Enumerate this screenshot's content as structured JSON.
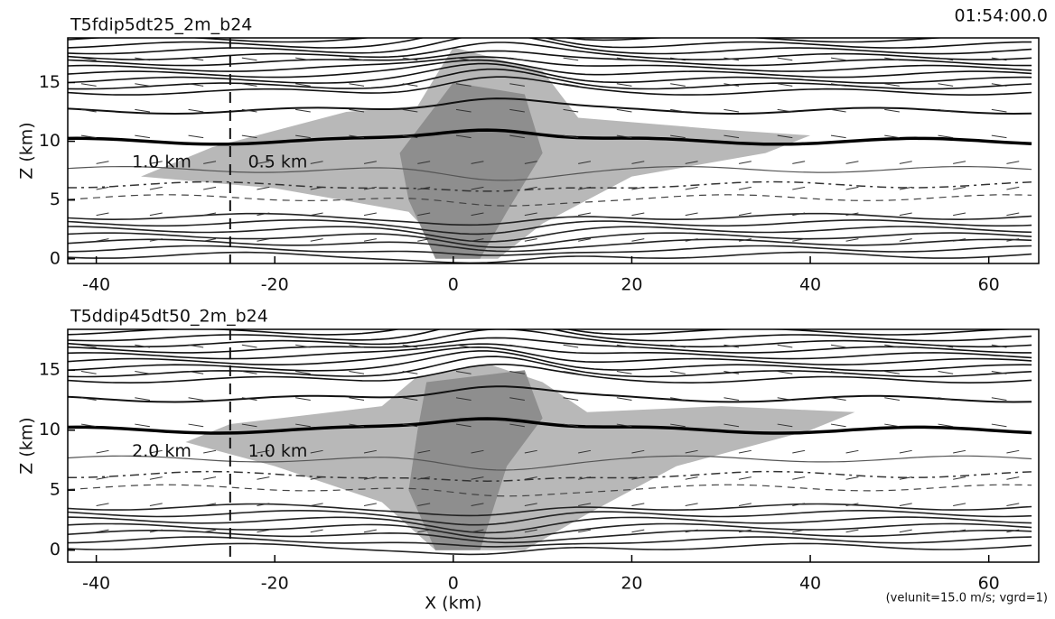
{
  "chart_data": [
    {
      "type": "contour",
      "title": "T5fdip5dt25_2m_b24",
      "timestamp": "01:54:00.0",
      "ylabel": "Z (km)",
      "annotations": [
        "1.0 km",
        "0.5 km"
      ],
      "xlim": [
        -43.2,
        65.6
      ],
      "xticks": [
        -40,
        -20,
        0,
        20,
        40,
        60
      ],
      "ylim": [
        -0.4,
        18.8
      ],
      "yticks": [
        0,
        5,
        10,
        15
      ]
    },
    {
      "type": "contour",
      "title": "T5ddip45dt50_2m_b24",
      "ylabel": "Z (km)",
      "xlabel": "X (km)",
      "annotations": [
        "2.0 km",
        "1.0 km"
      ],
      "note": "(velunit=15.0 m/s; vgrd=1)",
      "xlim": [
        -43.2,
        65.6
      ],
      "xticks": [
        -40,
        -20,
        0,
        20,
        40,
        60
      ],
      "ylim": [
        -1,
        18.4
      ],
      "yticks": [
        0,
        5,
        10,
        15
      ]
    }
  ]
}
